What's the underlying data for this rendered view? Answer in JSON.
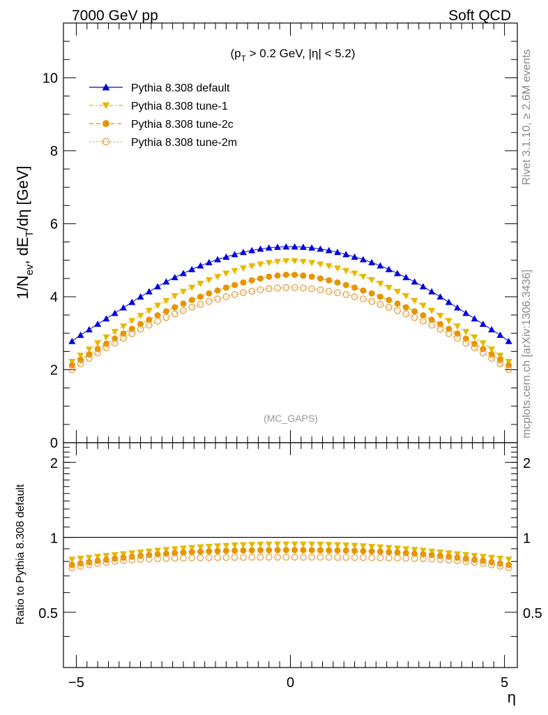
{
  "header": {
    "left_label": "7000 GeV pp",
    "right_label": "Soft QCD"
  },
  "side_labels": {
    "rivet": "Rivet 3.1.10, ≥ 2.6M events",
    "source": "mcplots.cern.ch [arXiv:1306.3436]"
  },
  "colors": {
    "default": "#0000dd",
    "tune_1": "#e6b800",
    "tune_2c": "#e69500",
    "tune_2m": "#e8a040",
    "watermark": "#999999"
  },
  "chart_data": [
    {
      "type": "scatter",
      "panel": "main",
      "cut_label": "(p",
      "cut_label_sub": "T",
      "cut_label_rest": " > 0.2 GeV, |η| < 5.2)",
      "ylabel_parts": [
        "1/N",
        "ev",
        ", dE",
        "T",
        "/dη [GeV]"
      ],
      "watermark": "(MC_GAPS)",
      "xlim": [
        -5.3,
        5.3
      ],
      "ylim": [
        0,
        11.5
      ],
      "y_ticks": [
        0,
        2,
        4,
        6,
        8,
        10
      ],
      "y_tick_labels": [
        "0",
        "2",
        "4",
        "6",
        "8",
        "10"
      ],
      "legend_position": "top-left",
      "x": [
        -5.1,
        -4.9,
        -4.7,
        -4.5,
        -4.3,
        -4.1,
        -3.9,
        -3.7,
        -3.5,
        -3.3,
        -3.1,
        -2.9,
        -2.7,
        -2.5,
        -2.3,
        -2.1,
        -1.9,
        -1.7,
        -1.5,
        -1.3,
        -1.1,
        -0.9,
        -0.7,
        -0.5,
        -0.3,
        -0.1,
        0.1,
        0.3,
        0.5,
        0.7,
        0.9,
        1.1,
        1.3,
        1.5,
        1.7,
        1.9,
        2.1,
        2.3,
        2.5,
        2.7,
        2.9,
        3.1,
        3.3,
        3.5,
        3.7,
        3.9,
        4.1,
        4.3,
        4.5,
        4.7,
        4.9,
        5.1
      ],
      "series": [
        {
          "name": "Pythia 8.308 default",
          "marker": "triangle-up-filled",
          "line": "solid",
          "values": [
            2.78,
            2.95,
            3.1,
            3.25,
            3.4,
            3.55,
            3.7,
            3.85,
            4.0,
            4.14,
            4.28,
            4.41,
            4.53,
            4.64,
            4.75,
            4.85,
            4.94,
            5.02,
            5.09,
            5.16,
            5.22,
            5.27,
            5.31,
            5.34,
            5.36,
            5.37,
            5.37,
            5.36,
            5.34,
            5.31,
            5.27,
            5.22,
            5.16,
            5.09,
            5.02,
            4.94,
            4.85,
            4.75,
            4.64,
            4.53,
            4.41,
            4.28,
            4.14,
            4.0,
            3.85,
            3.7,
            3.55,
            3.4,
            3.25,
            3.1,
            2.95,
            2.78
          ]
        },
        {
          "name": "Pythia 8.308 tune-1",
          "marker": "triangle-down-filled",
          "line": "dash-dot",
          "values": [
            2.22,
            2.39,
            2.56,
            2.73,
            2.89,
            3.04,
            3.19,
            3.34,
            3.48,
            3.62,
            3.76,
            3.89,
            4.02,
            4.14,
            4.25,
            4.36,
            4.46,
            4.55,
            4.64,
            4.71,
            4.78,
            4.84,
            4.89,
            4.93,
            4.96,
            4.98,
            4.98,
            4.96,
            4.93,
            4.89,
            4.84,
            4.78,
            4.71,
            4.64,
            4.55,
            4.46,
            4.36,
            4.25,
            4.14,
            4.02,
            3.89,
            3.76,
            3.62,
            3.48,
            3.34,
            3.19,
            3.04,
            2.89,
            2.73,
            2.56,
            2.39,
            2.22
          ]
        },
        {
          "name": "Pythia 8.308 tune-2c",
          "marker": "circle-filled",
          "line": "dashed",
          "values": [
            2.12,
            2.27,
            2.42,
            2.57,
            2.71,
            2.85,
            2.99,
            3.12,
            3.25,
            3.37,
            3.49,
            3.6,
            3.71,
            3.81,
            3.91,
            4.0,
            4.09,
            4.17,
            4.25,
            4.32,
            4.39,
            4.45,
            4.5,
            4.55,
            4.58,
            4.6,
            4.6,
            4.58,
            4.55,
            4.5,
            4.45,
            4.39,
            4.32,
            4.25,
            4.17,
            4.09,
            4.0,
            3.91,
            3.81,
            3.71,
            3.6,
            3.49,
            3.37,
            3.25,
            3.12,
            2.99,
            2.85,
            2.71,
            2.57,
            2.42,
            2.27,
            2.12
          ]
        },
        {
          "name": "Pythia 8.308 tune-2m",
          "marker": "circle-open",
          "line": "dotted",
          "values": [
            2.0,
            2.16,
            2.31,
            2.46,
            2.6,
            2.73,
            2.86,
            2.99,
            3.11,
            3.22,
            3.33,
            3.43,
            3.53,
            3.62,
            3.71,
            3.79,
            3.87,
            3.94,
            4.0,
            4.06,
            4.11,
            4.15,
            4.19,
            4.22,
            4.24,
            4.25,
            4.25,
            4.24,
            4.22,
            4.19,
            4.15,
            4.11,
            4.06,
            4.0,
            3.94,
            3.87,
            3.79,
            3.71,
            3.62,
            3.53,
            3.43,
            3.33,
            3.22,
            3.11,
            2.99,
            2.86,
            2.73,
            2.6,
            2.46,
            2.31,
            2.16,
            2.0
          ]
        }
      ]
    },
    {
      "type": "scatter",
      "panel": "ratio",
      "ylabel": "Ratio to Pythia 8.308 default",
      "xlabel": "η",
      "xlim": [
        -5.3,
        5.3
      ],
      "ylim": [
        0.3,
        2.4
      ],
      "log_y": true,
      "y_ticks": [
        0.5,
        1,
        2
      ],
      "y_tick_labels": [
        "0.5",
        "1",
        "2"
      ],
      "x_ticks": [
        -5,
        0,
        5
      ],
      "x_tick_labels": [
        "−5",
        "0",
        "5"
      ],
      "reference_line": 1,
      "x": [
        -5.1,
        -4.9,
        -4.7,
        -4.5,
        -4.3,
        -4.1,
        -3.9,
        -3.7,
        -3.5,
        -3.3,
        -3.1,
        -2.9,
        -2.7,
        -2.5,
        -2.3,
        -2.1,
        -1.9,
        -1.7,
        -1.5,
        -1.3,
        -1.1,
        -0.9,
        -0.7,
        -0.5,
        -0.3,
        -0.1,
        0.1,
        0.3,
        0.5,
        0.7,
        0.9,
        1.1,
        1.3,
        1.5,
        1.7,
        1.9,
        2.1,
        2.3,
        2.5,
        2.7,
        2.9,
        3.1,
        3.3,
        3.5,
        3.7,
        3.9,
        4.1,
        4.3,
        4.5,
        4.7,
        4.9,
        5.1
      ],
      "series": [
        {
          "name": "Pythia 8.308 tune-1",
          "marker": "triangle-down-filled",
          "values": [
            0.815,
            0.822,
            0.829,
            0.836,
            0.843,
            0.85,
            0.857,
            0.864,
            0.871,
            0.878,
            0.885,
            0.891,
            0.897,
            0.903,
            0.908,
            0.913,
            0.918,
            0.922,
            0.926,
            0.929,
            0.932,
            0.934,
            0.936,
            0.937,
            0.938,
            0.938,
            0.938,
            0.938,
            0.937,
            0.936,
            0.934,
            0.932,
            0.929,
            0.926,
            0.922,
            0.918,
            0.913,
            0.908,
            0.903,
            0.897,
            0.891,
            0.885,
            0.878,
            0.871,
            0.864,
            0.857,
            0.85,
            0.843,
            0.836,
            0.829,
            0.822,
            0.815
          ]
        },
        {
          "name": "Pythia 8.308 tune-2c",
          "marker": "circle-filled",
          "values": [
            0.775,
            0.785,
            0.795,
            0.805,
            0.813,
            0.821,
            0.829,
            0.836,
            0.843,
            0.849,
            0.855,
            0.86,
            0.865,
            0.869,
            0.873,
            0.876,
            0.879,
            0.881,
            0.883,
            0.885,
            0.886,
            0.887,
            0.888,
            0.888,
            0.889,
            0.889,
            0.889,
            0.889,
            0.888,
            0.888,
            0.887,
            0.886,
            0.885,
            0.883,
            0.881,
            0.879,
            0.876,
            0.873,
            0.869,
            0.865,
            0.86,
            0.855,
            0.849,
            0.843,
            0.836,
            0.829,
            0.821,
            0.813,
            0.805,
            0.795,
            0.785,
            0.775
          ]
        },
        {
          "name": "Pythia 8.308 tune-2m",
          "marker": "circle-open",
          "values": [
            0.755,
            0.765,
            0.775,
            0.785,
            0.793,
            0.8,
            0.806,
            0.811,
            0.815,
            0.818,
            0.821,
            0.823,
            0.825,
            0.826,
            0.827,
            0.828,
            0.829,
            0.83,
            0.83,
            0.831,
            0.831,
            0.832,
            0.832,
            0.832,
            0.832,
            0.832,
            0.832,
            0.832,
            0.832,
            0.832,
            0.832,
            0.831,
            0.831,
            0.83,
            0.83,
            0.829,
            0.828,
            0.827,
            0.826,
            0.825,
            0.823,
            0.821,
            0.818,
            0.815,
            0.811,
            0.806,
            0.8,
            0.793,
            0.785,
            0.775,
            0.765,
            0.755
          ]
        }
      ]
    }
  ]
}
